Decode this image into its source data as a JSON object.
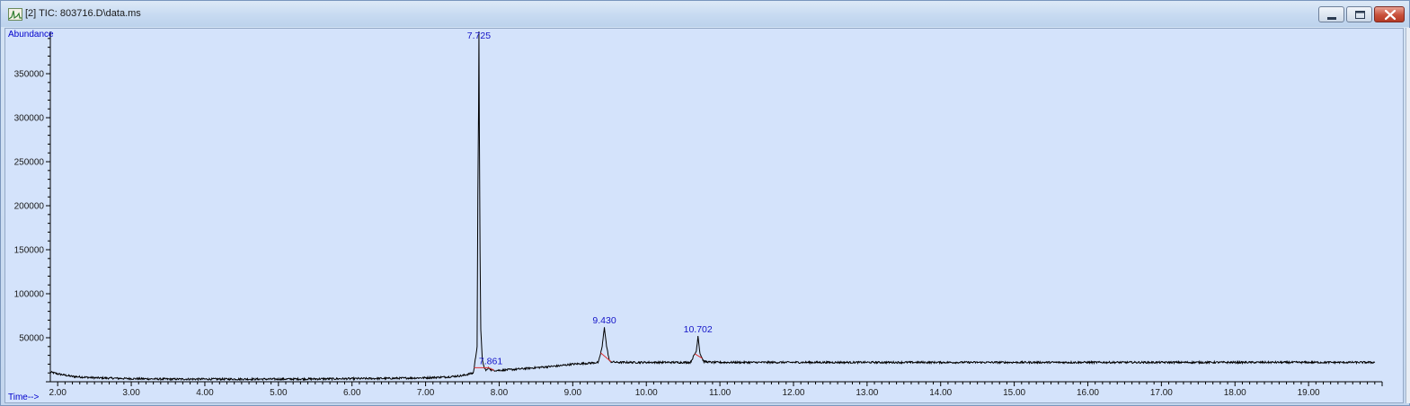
{
  "window": {
    "title": "[2] TIC: 803716.D\\data.ms",
    "icon": "chromatogram-app-icon",
    "controls": [
      "minimize-icon",
      "maximize-icon",
      "close-icon"
    ]
  },
  "colors": {
    "plot_background": "#d4e3fb",
    "trace": "#000000",
    "peak_label": "#1515c8",
    "baseline_marker": "#e03030",
    "axis_title": "#0000cc"
  },
  "chart_data": {
    "type": "line",
    "ylabel": "Abundance",
    "xlabel": "Time-->",
    "xlim": [
      1.9,
      20.0
    ],
    "ylim": [
      0,
      398000
    ],
    "x_ticks": [
      "2.00",
      "3.00",
      "4.00",
      "5.00",
      "6.00",
      "7.00",
      "8.00",
      "9.00",
      "10.00",
      "11.00",
      "12.00",
      "13.00",
      "14.00",
      "15.00",
      "16.00",
      "17.00",
      "18.00",
      "19.00"
    ],
    "y_ticks": [
      "50000",
      "100000",
      "150000",
      "200000",
      "250000",
      "300000",
      "350000"
    ],
    "peaks": [
      {
        "label": "7.725",
        "rt": 7.725,
        "height": 398000
      },
      {
        "label": "7.861",
        "rt": 7.861,
        "height": 16000
      },
      {
        "label": "9.430",
        "rt": 9.43,
        "height": 62000
      },
      {
        "label": "10.702",
        "rt": 10.702,
        "height": 52000
      }
    ],
    "series": [
      {
        "x": [
          1.9,
          2.0,
          2.2,
          2.5,
          3.0,
          3.5,
          4.0,
          4.5,
          5.0,
          5.5,
          6.0,
          6.5,
          7.0,
          7.3,
          7.5,
          7.65,
          7.7,
          7.71,
          7.72,
          7.725,
          7.73,
          7.74,
          7.75,
          7.77,
          7.8,
          7.83,
          7.861,
          7.9,
          8.0,
          8.2,
          8.5,
          8.8,
          9.0,
          9.2,
          9.35,
          9.4,
          9.43,
          9.46,
          9.5,
          9.6,
          9.8,
          10.0,
          10.3,
          10.5,
          10.6,
          10.68,
          10.702,
          10.73,
          10.78,
          10.9,
          11.2,
          12.0,
          13.0,
          14.0,
          15.0,
          16.0,
          17.0,
          18.0,
          19.0,
          19.9
        ],
        "y": [
          11000,
          9000,
          6000,
          4500,
          3500,
          3000,
          3000,
          3000,
          3000,
          3200,
          3500,
          3800,
          4500,
          5500,
          7000,
          10000,
          40000,
          210000,
          310000,
          398000,
          300000,
          150000,
          60000,
          25000,
          15000,
          13000,
          16000,
          13000,
          13000,
          14000,
          16000,
          18000,
          20000,
          21000,
          22000,
          40000,
          62000,
          40000,
          23000,
          22000,
          22000,
          22000,
          22000,
          22000,
          22000,
          35000,
          52000,
          32000,
          23000,
          22000,
          22000,
          22000,
          22000,
          22000,
          22000,
          22000,
          22000,
          22000,
          22000,
          22000
        ]
      }
    ]
  }
}
